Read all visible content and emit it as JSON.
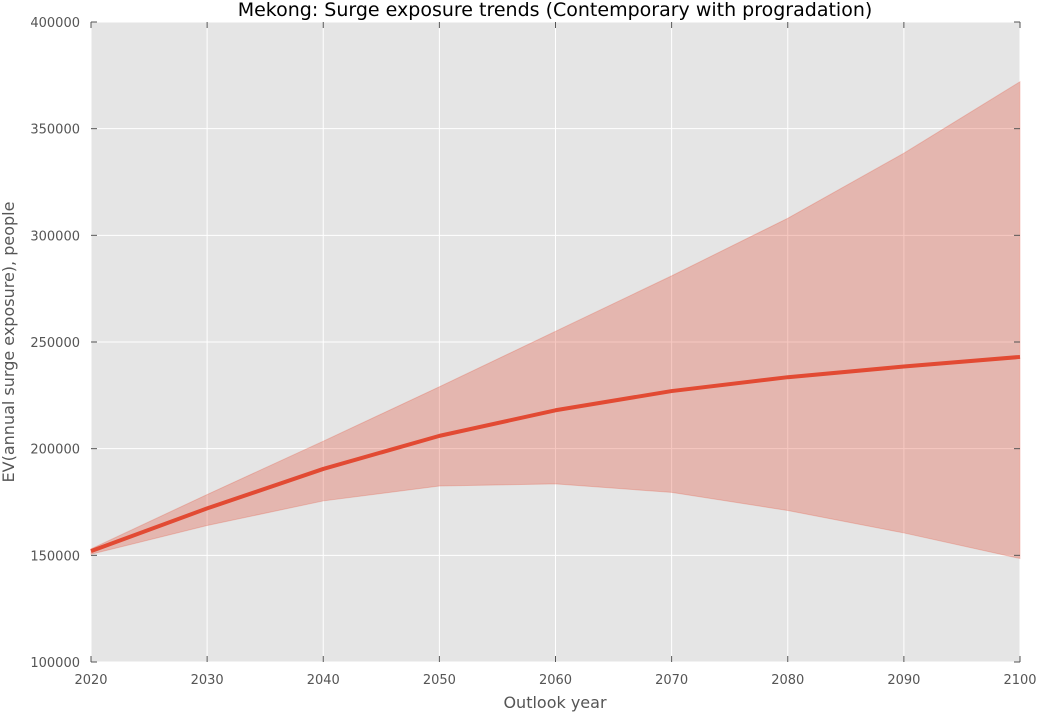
{
  "chart_data": {
    "type": "line",
    "title": "Mekong: Surge exposure trends (Contemporary with progradation)",
    "xlabel": "Outlook year",
    "ylabel": "EV(annual surge exposure), people",
    "xlim": [
      2020,
      2100
    ],
    "ylim": [
      100000,
      400000
    ],
    "xticks": [
      2020,
      2030,
      2040,
      2050,
      2060,
      2070,
      2080,
      2090,
      2100
    ],
    "yticks": [
      100000,
      150000,
      200000,
      250000,
      300000,
      350000,
      400000
    ],
    "x": [
      2020,
      2030,
      2040,
      2050,
      2060,
      2070,
      2080,
      2090,
      2100
    ],
    "series": [
      {
        "values": [
          152000,
          172000,
          190500,
          206000,
          218000,
          227000,
          233500,
          238500,
          243000
        ],
        "band_lower": [
          150500,
          164000,
          175500,
          182500,
          183500,
          179500,
          171000,
          160500,
          148500
        ],
        "band_upper": [
          153000,
          178500,
          203500,
          229000,
          255000,
          281000,
          308000,
          338500,
          372000
        ]
      }
    ],
    "grid": true,
    "colors": {
      "line": "#e24a33",
      "band": "#e24a33",
      "background": "#e5e5e5",
      "grid": "#ffffff"
    }
  }
}
